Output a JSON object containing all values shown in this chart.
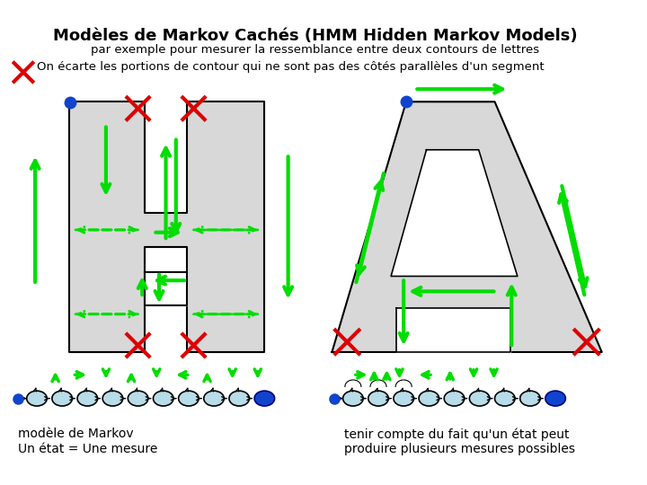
{
  "title": "Modèles de Markov Cachés (HMM Hidden Markov Models)",
  "subtitle": "par exemple pour mesurer la ressemblance entre deux contours de lettres",
  "subtitle2": "On écarte les portions de contour qui ne sont pas des côtés parallèles d'un segment",
  "caption_left": "modèle de Markov\nUn état = Une mesure",
  "caption_right": "tenir compte du fait qu'un état peut\nproduire plusieurs mesures possibles",
  "bg_color": "#ffffff",
  "letter_fill": "#d8d8d8",
  "letter_edge": "#000000",
  "green": "#00dd00",
  "red": "#dd0000",
  "blue": "#1144cc",
  "node_fill": "#b8dce8",
  "node_edge": "#000000"
}
